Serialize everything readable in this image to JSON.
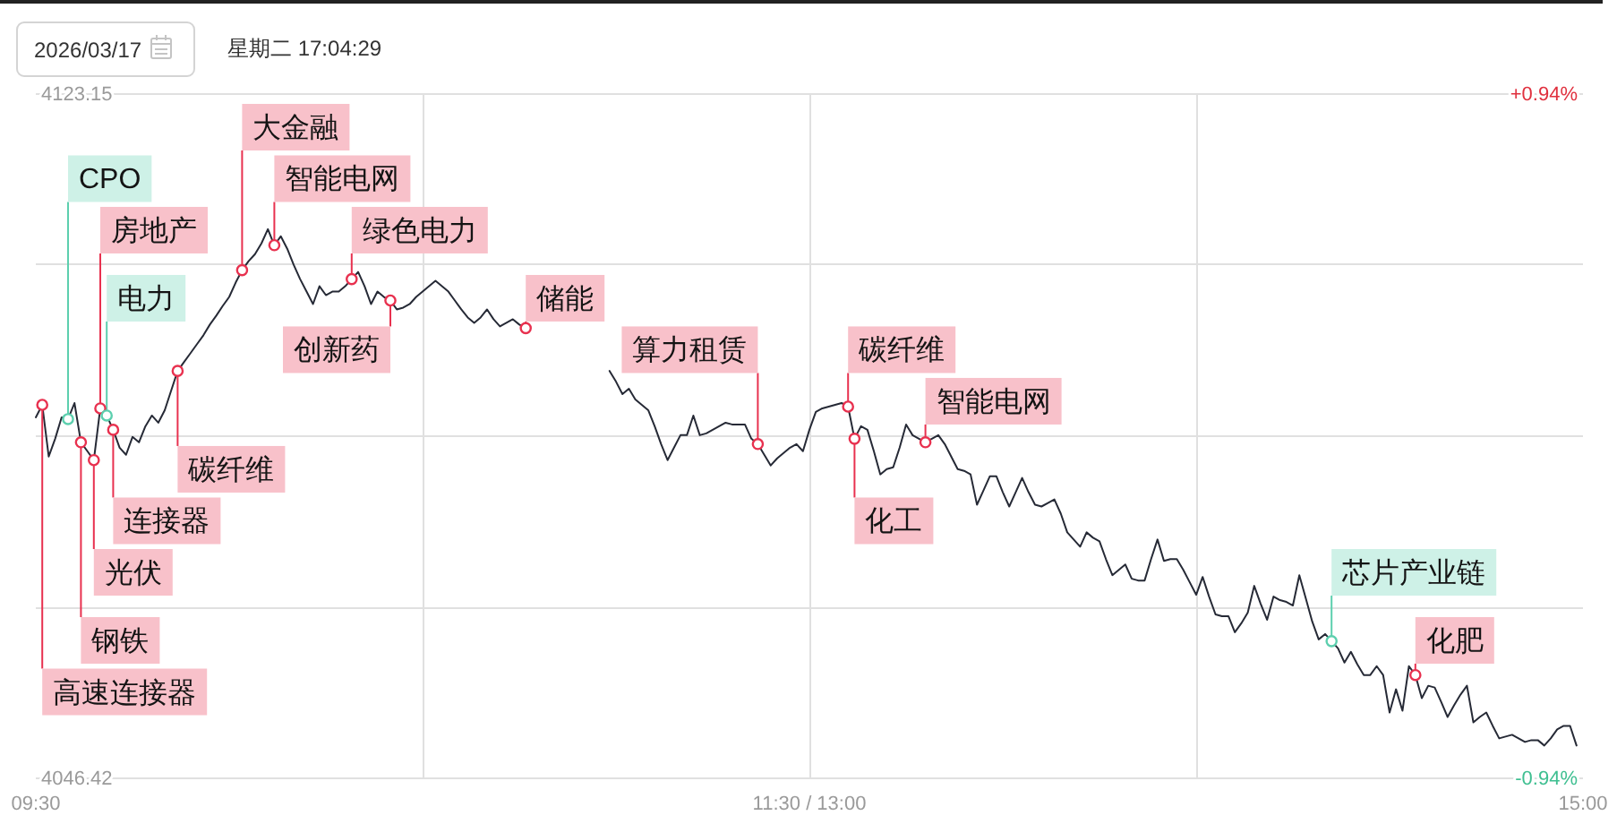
{
  "chart_data": {
    "type": "line",
    "title": "2026/03/17",
    "subtitle": "星期二 17:04:29",
    "categories": [
      "09:30",
      null,
      null,
      null,
      null,
      null,
      null,
      null,
      null,
      null,
      null,
      null,
      null,
      null,
      null,
      null,
      null,
      null,
      null,
      null,
      null,
      null,
      null,
      null,
      null,
      null,
      null,
      null,
      null,
      null,
      null,
      null,
      null,
      null,
      null,
      null,
      null,
      null,
      null,
      null,
      null,
      null,
      null,
      null,
      null,
      null,
      null,
      null,
      null,
      null,
      null,
      null,
      null,
      null,
      null,
      null,
      null,
      null,
      null,
      null,
      null,
      null,
      null,
      null,
      null,
      null,
      null,
      null,
      null,
      null,
      null,
      null,
      null,
      null,
      null,
      null,
      null,
      null,
      null,
      null,
      null,
      null,
      null,
      null,
      null,
      null,
      null,
      null,
      null,
      null,
      null,
      null,
      null,
      null,
      null,
      null,
      null,
      null,
      null,
      null,
      null,
      null,
      null,
      null,
      null,
      null,
      null,
      null,
      null,
      null,
      null,
      null,
      null,
      null,
      null,
      null,
      null,
      null,
      null,
      null,
      "11:30 / 13:00",
      null,
      null,
      null,
      null,
      null,
      null,
      null,
      null,
      null,
      null,
      null,
      null,
      null,
      null,
      null,
      null,
      null,
      null,
      null,
      null,
      null,
      null,
      null,
      null,
      null,
      null,
      null,
      null,
      null,
      null,
      null,
      null,
      null,
      null,
      null,
      null,
      null,
      null,
      null,
      null,
      null,
      null,
      null,
      null,
      null,
      null,
      null,
      null,
      null,
      null,
      null,
      null,
      null,
      null,
      null,
      null,
      null,
      null,
      null,
      null,
      null,
      null,
      null,
      null,
      null,
      null,
      null,
      null,
      null,
      null,
      null,
      null,
      null,
      null,
      null,
      null,
      null,
      null,
      null,
      null,
      null,
      null,
      null,
      null,
      null,
      null,
      null,
      null,
      null,
      null,
      null,
      null,
      null,
      null,
      null,
      null,
      null,
      null,
      null,
      null,
      null,
      null,
      null,
      null,
      null,
      null,
      null,
      null,
      null,
      null,
      null,
      null,
      null,
      null,
      null,
      null,
      null,
      null,
      null,
      "15:00"
    ],
    "ylim": [
      4046.42,
      4123.15
    ],
    "yticks": [
      4046.42,
      {
        "value": 4065.6,
        "label": null
      },
      {
        "value": 4084.79,
        "label": null
      },
      {
        "value": 4103.97,
        "label": null
      },
      4123.15
    ],
    "y2lim": [
      -0.94,
      0.94
    ],
    "y2ticks": [
      {
        "value": -0.94,
        "label": "-0.94%"
      },
      {
        "value": 0.94,
        "label": "+0.94%"
      }
    ],
    "grid": true,
    "series": [
      {
        "color": "#262a36",
        "values": [
          4086.8,
          4088.2,
          4082.4,
          4084.4,
          4086.8,
          4086.6,
          4088.4,
          4084.0,
          4083.0,
          4082.0,
          4087.8,
          4087.0,
          4085.4,
          4083.4,
          4082.6,
          4084.6,
          4084.0,
          4085.8,
          4087.0,
          4086.2,
          4087.6,
          4089.8,
          4092.0,
          4093.0,
          4094.0,
          4095.0,
          4096.0,
          4097.2,
          4098.2,
          4099.3,
          4100.3,
          4101.9,
          4103.3,
          4104.3,
          4105.1,
          4106.3,
          4107.9,
          4106.1,
          4107.1,
          4105.7,
          4103.9,
          4102.3,
          4100.9,
          4099.5,
          4101.5,
          4100.5,
          4100.9,
          4100.9,
          4101.5,
          4102.3,
          4103.1,
          4101.5,
          4099.5,
          4100.9,
          4100.3,
          4099.9,
          4098.9,
          4099.1,
          4099.5,
          4100.3,
          4100.9,
          4101.5,
          4102.1,
          4101.5,
          4100.9,
          4099.9,
          4098.9,
          4098.0,
          4097.4,
          4098.0,
          4098.9,
          4097.8,
          4097.0,
          4097.4,
          4097.8,
          4097.2,
          4096.8,
          null,
          null,
          null,
          null,
          null,
          null,
          null,
          null,
          null,
          null,
          null,
          null,
          4092.0,
          4090.8,
          4089.4,
          4090.0,
          4088.8,
          4088.2,
          4087.6,
          4085.8,
          4083.8,
          4082.0,
          4083.4,
          4084.8,
          4084.8,
          4087.0,
          4084.8,
          4085.0,
          4085.4,
          4085.8,
          4086.2,
          4086.0,
          4086.0,
          4086.0,
          4084.4,
          4083.8,
          4082.6,
          4081.4,
          4082.2,
          4082.8,
          4083.4,
          4083.8,
          4083.0,
          4085.4,
          4087.4,
          4087.8,
          4088.0,
          4088.2,
          4088.4,
          4088.0,
          4084.4,
          4085.8,
          4085.4,
          4083.0,
          4080.4,
          4081.0,
          4081.2,
          4083.4,
          4086.0,
          4084.8,
          4084.4,
          4084.0,
          4084.4,
          4084.8,
          4083.8,
          4082.4,
          4081.0,
          4080.8,
          4080.4,
          4077.0,
          4078.6,
          4080.2,
          4080.2,
          4078.4,
          4076.8,
          4078.4,
          4080.0,
          4078.4,
          4077.0,
          4076.8,
          4077.2,
          4077.6,
          4076.0,
          4073.9,
          4073.1,
          4072.3,
          4073.9,
          4073.3,
          4072.9,
          4070.9,
          4069.1,
          4069.7,
          4070.3,
          4068.7,
          4068.5,
          4068.5,
          4070.9,
          4073.1,
          4070.7,
          4070.9,
          4070.9,
          4069.7,
          4068.3,
          4066.9,
          4068.9,
          4066.7,
          4064.7,
          4064.5,
          4064.5,
          4062.7,
          4063.7,
          4064.9,
          4067.9,
          4065.9,
          4064.1,
          4066.7,
          4066.3,
          4066.1,
          4065.7,
          4069.1,
          4066.5,
          4063.9,
          4061.9,
          4062.5,
          4061.7,
          4060.9,
          4059.3,
          4060.5,
          4059.1,
          4057.9,
          4057.9,
          4058.9,
          4057.9,
          4053.7,
          4056.3,
          4053.9,
          4058.9,
          4057.9,
          4055.3,
          4056.7,
          4056.5,
          4054.9,
          4053.2,
          4054.5,
          4055.7,
          4056.7,
          4052.6,
          4053.2,
          4053.7,
          4052.2,
          4050.8,
          4051.0,
          4051.2,
          4050.8,
          4050.4,
          4050.6,
          4050.6,
          4050.0,
          4050.8,
          4051.8,
          4052.2,
          4052.2,
          4050.0,
          null
        ]
      },
      {
        "type": "scatter",
        "color": "#e8314f",
        "marker": "circle",
        "values": [
          null,
          4088.2,
          null,
          null,
          null,
          null,
          null,
          4084.0,
          null,
          4082.0,
          4087.8,
          null,
          4085.4,
          null,
          null,
          null,
          null,
          null,
          null,
          null,
          null,
          null,
          4092.0,
          null,
          null,
          null,
          null,
          null,
          null,
          null,
          null,
          null,
          4103.3,
          null,
          null,
          null,
          null,
          4106.1,
          null,
          null,
          null,
          null,
          null,
          null,
          null,
          null,
          null,
          null,
          null,
          4102.3,
          null,
          null,
          null,
          null,
          null,
          4099.9,
          null,
          null,
          null,
          null,
          null,
          null,
          null,
          null,
          null,
          null,
          null,
          null,
          null,
          null,
          null,
          null,
          null,
          null,
          null,
          null,
          4096.8,
          null,
          null,
          null,
          null,
          null,
          null,
          null,
          null,
          null,
          null,
          null,
          null,
          null,
          null,
          null,
          null,
          null,
          null,
          null,
          null,
          null,
          null,
          null,
          null,
          null,
          null,
          null,
          null,
          null,
          null,
          null,
          null,
          null,
          null,
          null,
          4083.8,
          null,
          null,
          null,
          null,
          null,
          null,
          null,
          null,
          null,
          null,
          null,
          null,
          null,
          4088.0,
          4084.4,
          null,
          null,
          null,
          null,
          null,
          null,
          null,
          null,
          null,
          null,
          4084.0,
          null,
          null,
          null,
          null,
          null,
          null,
          null,
          null,
          null,
          null,
          null,
          null,
          null,
          null,
          null,
          null,
          null,
          null,
          null,
          null,
          null,
          null,
          null,
          null,
          null,
          null,
          null,
          null,
          null,
          null,
          null,
          null,
          null,
          null,
          null,
          null,
          null,
          null,
          null,
          null,
          null,
          null,
          null,
          null,
          null,
          null,
          null,
          null,
          null,
          null,
          null,
          null,
          null,
          null,
          null,
          null,
          null,
          null,
          null,
          null,
          null,
          null,
          null,
          null,
          null,
          null,
          null,
          null,
          null,
          null,
          null,
          null,
          null,
          null,
          null,
          4057.9,
          null,
          null,
          null,
          null,
          null,
          null,
          null,
          null,
          null,
          null,
          null,
          null,
          null,
          null,
          null,
          null,
          null,
          null,
          null,
          null,
          null,
          null,
          null,
          null,
          null,
          null
        ],
        "value_labels": [
          null,
          "高速连接器",
          null,
          null,
          null,
          null,
          null,
          "钢铁",
          null,
          "光伏",
          "房地产",
          null,
          "连接器",
          null,
          null,
          null,
          null,
          null,
          null,
          null,
          null,
          null,
          "碳纤维",
          null,
          null,
          null,
          null,
          null,
          null,
          null,
          null,
          null,
          "大金融",
          null,
          null,
          null,
          null,
          "智能电网",
          null,
          null,
          null,
          null,
          null,
          null,
          null,
          null,
          null,
          null,
          null,
          "绿色电力",
          null,
          null,
          null,
          null,
          null,
          "创新药",
          null,
          null,
          null,
          null,
          null,
          null,
          null,
          null,
          null,
          null,
          null,
          null,
          null,
          null,
          null,
          null,
          null,
          null,
          null,
          null,
          "储能",
          null,
          null,
          null,
          null,
          null,
          null,
          null,
          null,
          null,
          null,
          null,
          null,
          null,
          null,
          null,
          null,
          null,
          null,
          null,
          null,
          null,
          null,
          null,
          null,
          null,
          null,
          null,
          null,
          null,
          null,
          null,
          null,
          null,
          null,
          null,
          "算力租赁",
          null,
          null,
          null,
          null,
          null,
          null,
          null,
          null,
          null,
          null,
          null,
          null,
          null,
          "碳纤维",
          "化工",
          null,
          null,
          null,
          null,
          null,
          null,
          null,
          null,
          null,
          null,
          "智能电网",
          null,
          null,
          null,
          null,
          null,
          null,
          null,
          null,
          null,
          null,
          null,
          null,
          null,
          null,
          null,
          null,
          null,
          null,
          null,
          null,
          null,
          null,
          null,
          null,
          null,
          null,
          null,
          null,
          null,
          null,
          null,
          null,
          null,
          null,
          null,
          null,
          null,
          null,
          null,
          null,
          null,
          null,
          null,
          null,
          null,
          null,
          null,
          null,
          null,
          null,
          null,
          null,
          null,
          null,
          null,
          null,
          null,
          null,
          null,
          null,
          null,
          null,
          null,
          null,
          null,
          null,
          null,
          null,
          null,
          null,
          null,
          null,
          null,
          null,
          null,
          "化肥",
          null,
          null,
          null,
          null,
          null,
          null,
          null,
          null,
          null,
          null,
          null,
          null,
          null,
          null,
          null,
          null,
          null,
          null,
          null,
          null,
          null,
          null,
          null,
          null,
          null,
          null
        ]
      },
      {
        "type": "scatter",
        "color": "#5ccfae",
        "marker": "circle",
        "values": [
          null,
          null,
          null,
          null,
          null,
          4086.6,
          null,
          null,
          null,
          null,
          null,
          4087.0,
          null,
          null,
          null,
          null,
          null,
          null,
          null,
          null,
          null,
          null,
          null,
          null,
          null,
          null,
          null,
          null,
          null,
          null,
          null,
          null,
          null,
          null,
          null,
          null,
          null,
          null,
          null,
          null,
          null,
          null,
          null,
          null,
          null,
          null,
          null,
          null,
          null,
          null,
          null,
          null,
          null,
          null,
          null,
          null,
          null,
          null,
          null,
          null,
          null,
          null,
          null,
          null,
          null,
          null,
          null,
          null,
          null,
          null,
          null,
          null,
          null,
          null,
          null,
          null,
          null,
          null,
          null,
          null,
          null,
          null,
          null,
          null,
          null,
          null,
          null,
          null,
          null,
          null,
          null,
          null,
          null,
          null,
          null,
          null,
          null,
          null,
          null,
          null,
          null,
          null,
          null,
          null,
          null,
          null,
          null,
          null,
          null,
          null,
          null,
          null,
          null,
          null,
          null,
          null,
          null,
          null,
          null,
          null,
          null,
          null,
          null,
          null,
          null,
          null,
          null,
          null,
          null,
          null,
          null,
          null,
          null,
          null,
          null,
          null,
          null,
          null,
          null,
          null,
          null,
          null,
          null,
          null,
          null,
          null,
          null,
          null,
          null,
          null,
          null,
          null,
          null,
          null,
          null,
          null,
          null,
          null,
          null,
          null,
          null,
          null,
          null,
          null,
          null,
          null,
          null,
          null,
          null,
          null,
          null,
          null,
          null,
          null,
          null,
          null,
          null,
          null,
          null,
          null,
          null,
          null,
          null,
          null,
          null,
          null,
          null,
          null,
          null,
          null,
          null,
          null,
          null,
          null,
          null,
          null,
          null,
          null,
          null,
          null,
          null,
          4061.7,
          null,
          null,
          null,
          null,
          null,
          null,
          null,
          null,
          null,
          null,
          null,
          null,
          null,
          null,
          null,
          null,
          null,
          null,
          null,
          null,
          null,
          null,
          null,
          null,
          null,
          null,
          null,
          null,
          null,
          null,
          null,
          null,
          null,
          null,
          null,
          null,
          null,
          null,
          null
        ],
        "value_labels": [
          null,
          null,
          null,
          null,
          null,
          "CPO",
          null,
          null,
          null,
          null,
          null,
          "电力",
          null,
          null,
          null,
          null,
          null,
          null,
          null,
          null,
          null,
          null,
          null,
          null,
          null,
          null,
          null,
          null,
          null,
          null,
          null,
          null,
          null,
          null,
          null,
          null,
          null,
          null,
          null,
          null,
          null,
          null,
          null,
          null,
          null,
          null,
          null,
          null,
          null,
          null,
          null,
          null,
          null,
          null,
          null,
          null,
          null,
          null,
          null,
          null,
          null,
          null,
          null,
          null,
          null,
          null,
          null,
          null,
          null,
          null,
          null,
          null,
          null,
          null,
          null,
          null,
          null,
          null,
          null,
          null,
          null,
          null,
          null,
          null,
          null,
          null,
          null,
          null,
          null,
          null,
          null,
          null,
          null,
          null,
          null,
          null,
          null,
          null,
          null,
          null,
          null,
          null,
          null,
          null,
          null,
          null,
          null,
          null,
          null,
          null,
          null,
          null,
          null,
          null,
          null,
          null,
          null,
          null,
          null,
          null,
          null,
          null,
          null,
          null,
          null,
          null,
          null,
          null,
          null,
          null,
          null,
          null,
          null,
          null,
          null,
          null,
          null,
          null,
          null,
          null,
          null,
          null,
          null,
          null,
          null,
          null,
          null,
          null,
          null,
          null,
          null,
          null,
          null,
          null,
          null,
          null,
          null,
          null,
          null,
          null,
          null,
          null,
          null,
          null,
          null,
          null,
          null,
          null,
          null,
          null,
          null,
          null,
          null,
          null,
          null,
          null,
          null,
          null,
          null,
          null,
          null,
          null,
          null,
          null,
          null,
          null,
          null,
          null,
          null,
          null,
          null,
          null,
          null,
          null,
          null,
          null,
          null,
          null,
          null,
          null,
          null,
          "芯片产业链",
          null,
          null,
          null,
          null,
          null,
          null,
          null,
          null,
          null,
          null,
          null,
          null,
          null,
          null,
          null,
          null,
          null,
          null,
          null,
          null,
          null,
          null,
          null,
          null,
          null,
          null,
          null,
          null,
          null,
          null,
          null,
          null,
          null,
          null,
          null,
          null,
          null,
          null,
          null
        ]
      }
    ]
  }
}
